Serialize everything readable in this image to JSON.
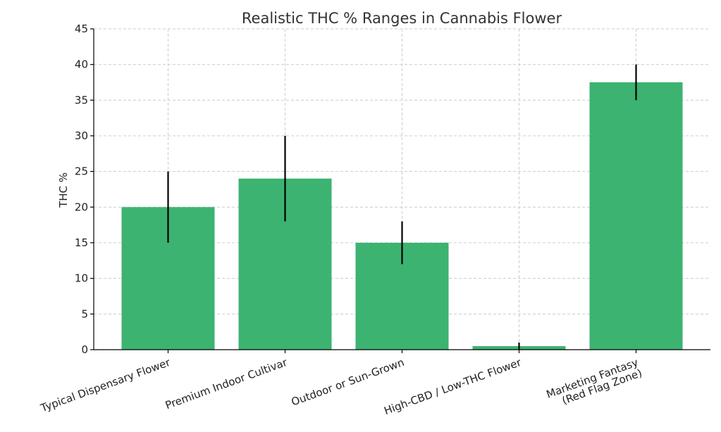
{
  "chart_data": {
    "type": "bar",
    "title": "Realistic THC % Ranges in Cannabis Flower",
    "xlabel": "",
    "ylabel": "THC %",
    "ylim": [
      0,
      45
    ],
    "yticks": [
      0,
      5,
      10,
      15,
      20,
      25,
      30,
      35,
      40,
      45
    ],
    "grid": true,
    "categories": [
      [
        "Typical Dispensary Flower"
      ],
      [
        "Premium Indoor Cultivar"
      ],
      [
        "Outdoor or Sun-Grown"
      ],
      [
        "High-CBD / Low-THC Flower"
      ],
      [
        "Marketing Fantasy",
        "(Red Flag Zone)"
      ]
    ],
    "values": [
      20,
      24,
      15,
      0.5,
      37.5
    ],
    "error_low": [
      15,
      18,
      12,
      0,
      35
    ],
    "error_high": [
      25,
      30,
      18,
      1,
      40
    ],
    "colors": {
      "bar": "#3cb371"
    }
  }
}
